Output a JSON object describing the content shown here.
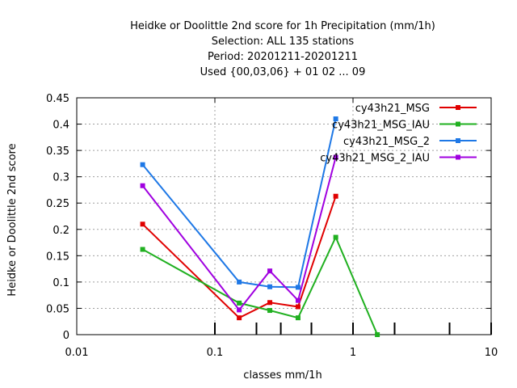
{
  "chart_data": {
    "type": "line",
    "title_lines": [
      "Heidke or Doolittle 2nd score  for 1h Precipitation (mm/1h)",
      "Selection: ALL    135 stations",
      "Period: 20201211-20201211",
      "Used {00,03,06} + 01 02 ... 09"
    ],
    "xlabel": "classes mm/1h",
    "ylabel": "Heidke or Doolittle 2nd score",
    "xscale": "log",
    "xlim": [
      0.01,
      10
    ],
    "ylim": [
      0,
      0.45
    ],
    "x_ticks": [
      0.01,
      0.1,
      1,
      10
    ],
    "x_tick_labels": [
      "0.01",
      "0.1",
      "1",
      "10"
    ],
    "x_minor_marks": [
      0.1,
      0.2,
      0.3,
      0.5,
      1,
      2,
      5,
      10
    ],
    "y_ticks": [
      0,
      0.05,
      0.1,
      0.15,
      0.2,
      0.25,
      0.3,
      0.35,
      0.4,
      0.45
    ],
    "y_tick_labels": [
      "0",
      "0.05",
      "0.1",
      "0.15",
      "0.2",
      "0.25",
      "0.3",
      "0.35",
      "0.4",
      "0.45"
    ],
    "grid": true,
    "legend_position": "top-right",
    "series": [
      {
        "name": "cy43h21_MSG",
        "color": "#e00000",
        "x": [
          0.03,
          0.15,
          0.25,
          0.4,
          0.75
        ],
        "y": [
          0.21,
          0.032,
          0.061,
          0.053,
          0.263
        ]
      },
      {
        "name": "cy43h21_MSG_IAU",
        "color": "#20b020",
        "x": [
          0.03,
          0.15,
          0.25,
          0.4,
          0.75,
          1.5
        ],
        "y": [
          0.162,
          0.06,
          0.046,
          0.032,
          0.185,
          0.0
        ]
      },
      {
        "name": "cy43h21_MSG_2",
        "color": "#1e78e6",
        "x": [
          0.03,
          0.15,
          0.25,
          0.4,
          0.75
        ],
        "y": [
          0.323,
          0.1,
          0.091,
          0.09,
          0.41
        ]
      },
      {
        "name": "cy43h21_MSG_2_IAU",
        "color": "#a000e0",
        "x": [
          0.03,
          0.15,
          0.25,
          0.4,
          0.75
        ],
        "y": [
          0.283,
          0.047,
          0.121,
          0.065,
          0.337
        ]
      }
    ]
  }
}
